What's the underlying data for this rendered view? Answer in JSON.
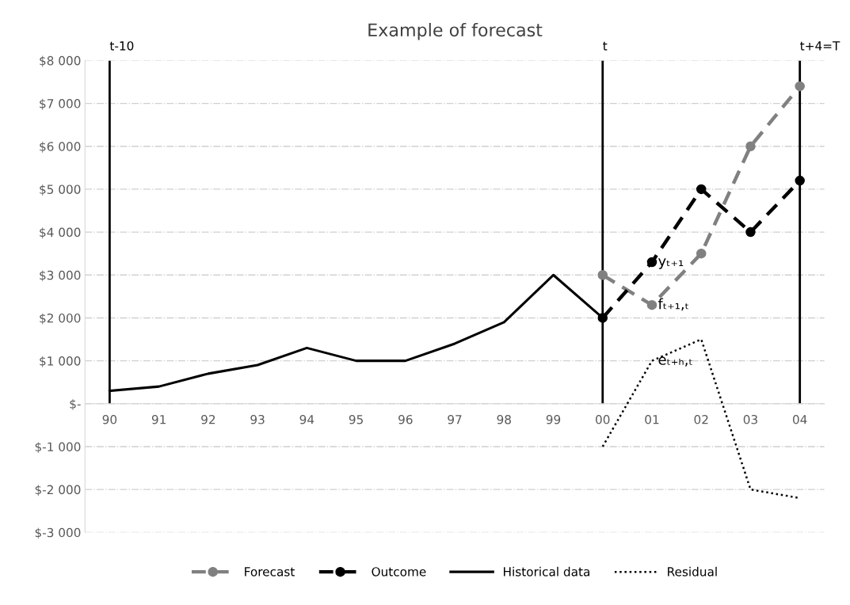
{
  "chart_data": {
    "type": "line",
    "title": "Example of forecast",
    "categories": [
      "90",
      "91",
      "92",
      "93",
      "94",
      "95",
      "96",
      "97",
      "98",
      "99",
      "00",
      "01",
      "02",
      "03",
      "04"
    ],
    "series": [
      {
        "name": "Forecast",
        "color": "#808080",
        "marker": "circle",
        "line_style": "dashed",
        "values": [
          null,
          null,
          null,
          null,
          null,
          null,
          null,
          null,
          null,
          null,
          3000,
          2300,
          3500,
          6000,
          7400
        ]
      },
      {
        "name": "Outcome",
        "color": "#000000",
        "marker": "circle",
        "line_style": "dashed",
        "values": [
          null,
          null,
          null,
          null,
          null,
          null,
          null,
          null,
          null,
          null,
          2000,
          3300,
          5000,
          4000,
          5200
        ]
      },
      {
        "name": "Historical data",
        "color": "#000000",
        "marker": "none",
        "line_style": "solid",
        "values": [
          300,
          400,
          700,
          900,
          1300,
          1000,
          1000,
          1400,
          1900,
          3000,
          2000,
          null,
          null,
          null,
          null
        ]
      },
      {
        "name": "Residual",
        "color": "#000000",
        "marker": "none",
        "line_style": "dotted",
        "values": [
          null,
          null,
          null,
          null,
          null,
          null,
          null,
          null,
          null,
          null,
          -1000,
          1000,
          1500,
          -2000,
          -2200
        ]
      }
    ],
    "ylim": [
      -3000,
      8000
    ],
    "yticks": [
      {
        "value": -3000,
        "label": "$-3 000"
      },
      {
        "value": -2000,
        "label": "$-2 000"
      },
      {
        "value": -1000,
        "label": "$-1 000"
      },
      {
        "value": 0,
        "label": "$-"
      },
      {
        "value": 1000,
        "label": "$1 000"
      },
      {
        "value": 2000,
        "label": "$2 000"
      },
      {
        "value": 3000,
        "label": "$3 000"
      },
      {
        "value": 4000,
        "label": "$4 000"
      },
      {
        "value": 5000,
        "label": "$5 000"
      },
      {
        "value": 6000,
        "label": "$6 000"
      },
      {
        "value": 7000,
        "label": "$7 000"
      },
      {
        "value": 8000,
        "label": "$8 000"
      }
    ],
    "ref_lines": [
      {
        "axis": "x",
        "value": "90",
        "label": "t-10",
        "color": "#000000"
      },
      {
        "axis": "x",
        "value": "00",
        "label": "t",
        "color": "#000000"
      },
      {
        "axis": "x",
        "value": "04",
        "label": "t+4=T",
        "color": "#000000"
      }
    ],
    "annotations": [
      {
        "text": "yₜ₊₁",
        "x": "01",
        "y": 3300
      },
      {
        "text": "fₜ₊₁,ₜ",
        "x": "01",
        "y": 2300
      },
      {
        "text": "eₜ₊ₕ,ₜ",
        "x": "01",
        "y": 1000
      }
    ],
    "grid": "y",
    "legend": "bottom"
  }
}
